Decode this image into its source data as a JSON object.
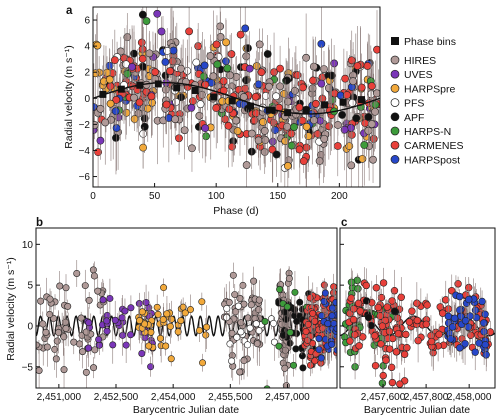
{
  "chart_data": [
    {
      "panel": "a",
      "type": "scatter",
      "xlabel": "Phase (d)",
      "ylabel": "Radial velocity (m s⁻¹)",
      "xlim": [
        0,
        233
      ],
      "ylim": [
        -6.8,
        7
      ],
      "xticks": [
        "0",
        "50",
        "100",
        "150",
        "200"
      ],
      "xtick_values": [
        0,
        50,
        100,
        150,
        200
      ],
      "yticks": [
        "6",
        "4",
        "2",
        "0",
        "−2",
        "−4",
        "−6"
      ],
      "ytick_values": [
        6,
        4,
        2,
        0,
        -2,
        -4,
        -6
      ],
      "grid": false,
      "legend_position": "right",
      "bins_label": "Phase bins",
      "model": {
        "period_days": 233,
        "amplitude": 1.2
      },
      "phase_bins": [
        {
          "x": 8,
          "y": 0.3
        },
        {
          "x": 23,
          "y": 0.7
        },
        {
          "x": 38,
          "y": 1.0
        },
        {
          "x": 53,
          "y": 1.1
        },
        {
          "x": 68,
          "y": 0.8
        },
        {
          "x": 83,
          "y": 0.6
        },
        {
          "x": 98,
          "y": 0.1
        },
        {
          "x": 113,
          "y": -0.2
        },
        {
          "x": 128,
          "y": -0.6
        },
        {
          "x": 143,
          "y": -0.9
        },
        {
          "x": 158,
          "y": -1.1
        },
        {
          "x": 173,
          "y": -0.9
        },
        {
          "x": 188,
          "y": -0.5
        },
        {
          "x": 203,
          "y": -0.3
        },
        {
          "x": 218,
          "y": -0.1
        }
      ],
      "series": [
        {
          "name": "HIRES",
          "color": "#b09a98",
          "count": 150
        },
        {
          "name": "UVES",
          "color": "#7a36b8",
          "count": 30
        },
        {
          "name": "HARPSpre",
          "color": "#f2a93b",
          "count": 70
        },
        {
          "name": "PFS",
          "color": "#ffffff",
          "count": 25
        },
        {
          "name": "APF",
          "color": "#111111",
          "count": 40
        },
        {
          "name": "HARPS-N",
          "color": "#3d9b3b",
          "count": 25
        },
        {
          "name": "CARMENES",
          "color": "#e8403a",
          "count": 160
        },
        {
          "name": "HARPSpost",
          "color": "#2747c9",
          "count": 40
        }
      ]
    },
    {
      "panel": "b",
      "type": "scatter",
      "xlabel": "Barycentric Julian date",
      "ylabel": "Radial velocity (m s⁻¹)",
      "xlim": [
        2450400,
        2458300
      ],
      "ylim": [
        -7.6,
        12
      ],
      "xticks": [
        "2,451,000",
        "2,452,500",
        "2,454,000",
        "2,455,500",
        "2,457,000"
      ],
      "xtick_values": [
        2451000,
        2452500,
        2454000,
        2455500,
        2457000
      ],
      "yticks": [
        "10",
        "5",
        "0",
        "−5"
      ],
      "ytick_values": [
        10,
        5,
        0,
        -5
      ],
      "grid": false,
      "model": {
        "period_days": 233,
        "amplitude": 1.2
      },
      "series": [
        {
          "name": "HIRES",
          "color": "#b09a98",
          "spans": [
            [
              2450400,
              2452200
            ],
            [
              2455300,
              2456300
            ],
            [
              2456800,
              2457050
            ]
          ],
          "count": 160
        },
        {
          "name": "UVES",
          "color": "#7a36b8",
          "spans": [
            [
              2451700,
              2453500
            ]
          ],
          "count": 40
        },
        {
          "name": "HARPSpre",
          "color": "#f2a93b",
          "spans": [
            [
              2453000,
              2454900
            ]
          ],
          "count": 45
        },
        {
          "name": "PFS",
          "color": "#ffffff",
          "spans": [
            [
              2455400,
              2456700
            ]
          ],
          "count": 18
        },
        {
          "name": "APF",
          "color": "#111111",
          "spans": [
            [
              2456700,
              2457700
            ]
          ],
          "count": 45
        },
        {
          "name": "HARPS-N",
          "color": "#3d9b3b",
          "spans": [
            [
              2456400,
              2457900
            ]
          ],
          "count": 10
        },
        {
          "name": "CARMENES",
          "color": "#e8403a",
          "spans": [
            [
              2457450,
              2458300
            ]
          ],
          "count": 110
        },
        {
          "name": "HARPSpost",
          "color": "#2747c9",
          "spans": [
            [
              2457800,
              2458300
            ]
          ],
          "count": 35
        }
      ]
    },
    {
      "panel": "c",
      "type": "scatter",
      "xlabel": "Barycentric Julian date",
      "xlim": [
        2457400,
        2458120
      ],
      "ylim": [
        -7.6,
        12
      ],
      "xticks": [
        "2,457,600",
        "2,457,800",
        "2,458,000"
      ],
      "xtick_values": [
        2457600,
        2457800,
        2458000
      ],
      "grid": false,
      "model": {
        "period_days": 233,
        "amplitude": 1.2
      },
      "series": [
        {
          "name": "HARPS-N",
          "color": "#3d9b3b",
          "spans": [
            [
              2457420,
              2457650
            ]
          ],
          "count": 35
        },
        {
          "name": "CARMENES",
          "color": "#e8403a",
          "spans": [
            [
              2457440,
              2458100
            ]
          ],
          "count": 170
        },
        {
          "name": "HARPSpost",
          "color": "#2747c9",
          "spans": [
            [
              2457900,
              2458080
            ]
          ],
          "count": 45
        },
        {
          "name": "APF",
          "color": "#111111",
          "spans": [
            [
              2457450,
              2457700
            ]
          ],
          "count": 6
        }
      ]
    }
  ]
}
